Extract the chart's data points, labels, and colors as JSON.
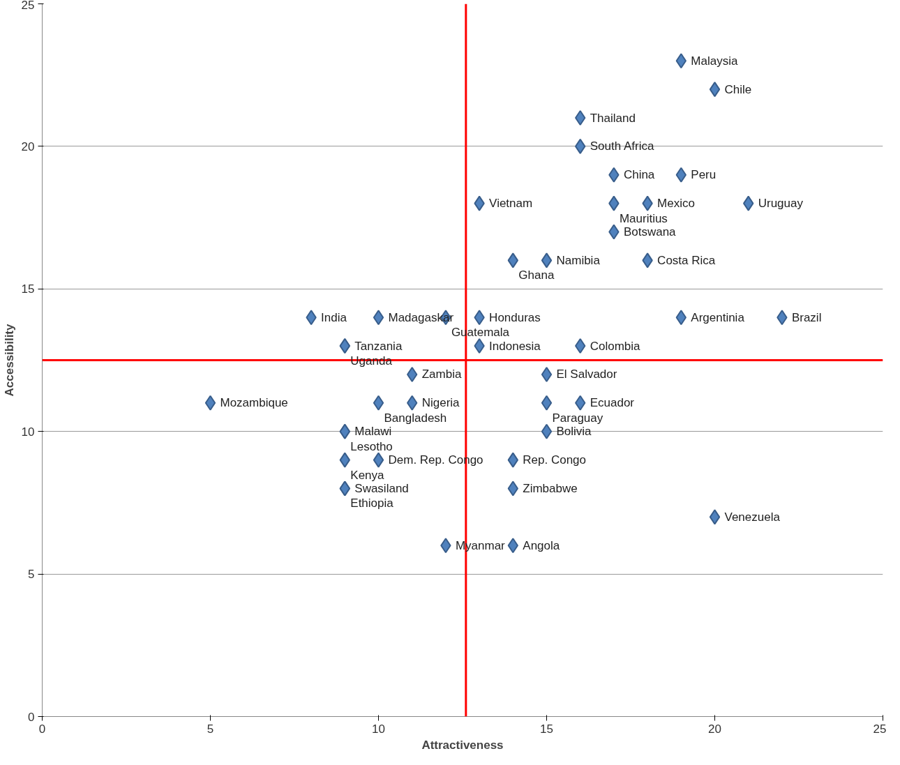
{
  "chart_data": {
    "type": "scatter",
    "xlabel": "Attractiveness",
    "ylabel": "Accessibility",
    "x": [
      19,
      20,
      16,
      16,
      17,
      19,
      13,
      17,
      18,
      21,
      17,
      14,
      15,
      18,
      8,
      10,
      12,
      13,
      19,
      22,
      9,
      9,
      13,
      16,
      11,
      15,
      5,
      10,
      11,
      15,
      16,
      9,
      9,
      15,
      9,
      10,
      14,
      9,
      9,
      14,
      20,
      12,
      14
    ],
    "series": [
      {
        "color": "#4f81bd",
        "values": [
          23,
          22,
          21,
          20,
          19,
          19,
          18,
          18,
          18,
          18,
          17,
          16,
          16,
          16,
          14,
          14,
          14,
          14,
          14,
          14,
          13,
          13,
          13,
          13,
          12,
          12,
          11,
          11,
          11,
          11,
          11,
          10,
          10,
          10,
          9,
          9,
          9,
          8,
          8,
          8,
          7,
          6,
          6
        ]
      }
    ],
    "annotations": [
      {
        "text": "Malaysia",
        "x": 19,
        "y": 23
      },
      {
        "text": "Chile",
        "x": 20,
        "y": 22
      },
      {
        "text": "Thailand",
        "x": 16,
        "y": 21
      },
      {
        "text": "South Africa",
        "x": 16,
        "y": 20
      },
      {
        "text": "China",
        "x": 17,
        "y": 19
      },
      {
        "text": "Peru",
        "x": 19,
        "y": 19
      },
      {
        "text": "Vietnam",
        "x": 13,
        "y": 18
      },
      {
        "text": "Mauritius",
        "x": 17,
        "y": 18
      },
      {
        "text": "Mexico",
        "x": 18,
        "y": 18
      },
      {
        "text": "Uruguay",
        "x": 21,
        "y": 18
      },
      {
        "text": "Botswana",
        "x": 17,
        "y": 17
      },
      {
        "text": "Ghana",
        "x": 14,
        "y": 16
      },
      {
        "text": "Namibia",
        "x": 15,
        "y": 16
      },
      {
        "text": "Costa Rica",
        "x": 18,
        "y": 16
      },
      {
        "text": "India",
        "x": 8,
        "y": 14
      },
      {
        "text": "Madagaskar",
        "x": 10,
        "y": 14
      },
      {
        "text": "Guatemala",
        "x": 12,
        "y": 14
      },
      {
        "text": "Honduras",
        "x": 13,
        "y": 14
      },
      {
        "text": "Argentinia",
        "x": 19,
        "y": 14
      },
      {
        "text": "Brazil",
        "x": 22,
        "y": 14
      },
      {
        "text": "Tanzania",
        "x": 9,
        "y": 13
      },
      {
        "text": "Uganda",
        "x": 9,
        "y": 13
      },
      {
        "text": "Indonesia",
        "x": 13,
        "y": 13
      },
      {
        "text": "Colombia",
        "x": 16,
        "y": 13
      },
      {
        "text": "Zambia",
        "x": 11,
        "y": 12
      },
      {
        "text": "El Salvador",
        "x": 15,
        "y": 12
      },
      {
        "text": "Mozambique",
        "x": 5,
        "y": 11
      },
      {
        "text": "Bangladesh",
        "x": 10,
        "y": 11
      },
      {
        "text": "Nigeria",
        "x": 11,
        "y": 11
      },
      {
        "text": "Paraguay",
        "x": 15,
        "y": 11
      },
      {
        "text": "Ecuador",
        "x": 16,
        "y": 11
      },
      {
        "text": "Malawi",
        "x": 9,
        "y": 10
      },
      {
        "text": "Lesotho",
        "x": 9,
        "y": 10
      },
      {
        "text": "Bolivia",
        "x": 15,
        "y": 10
      },
      {
        "text": "Kenya",
        "x": 9,
        "y": 9
      },
      {
        "text": "Dem. Rep. Congo",
        "x": 10,
        "y": 9
      },
      {
        "text": "Rep. Congo",
        "x": 14,
        "y": 9
      },
      {
        "text": "Swasiland",
        "x": 9,
        "y": 8
      },
      {
        "text": "Ethiopia",
        "x": 9,
        "y": 8
      },
      {
        "text": "Zimbabwe",
        "x": 14,
        "y": 8
      },
      {
        "text": "Venezuela",
        "x": 20,
        "y": 7
      },
      {
        "text": "Myanmar",
        "x": 12,
        "y": 6
      },
      {
        "text": "Angola",
        "x": 14,
        "y": 6
      }
    ],
    "xlim": [
      0,
      25
    ],
    "ylim": [
      0,
      25
    ],
    "xticks": [
      0,
      5,
      10,
      15,
      20,
      25
    ],
    "yticks": [
      0,
      5,
      10,
      15,
      20,
      25
    ],
    "grid": "y",
    "marker": "diamond",
    "ref_lines": [
      {
        "axis": "x",
        "value": 12.6,
        "color": "#ff0000"
      },
      {
        "axis": "y",
        "value": 12.5,
        "color": "#ff0000"
      }
    ]
  }
}
